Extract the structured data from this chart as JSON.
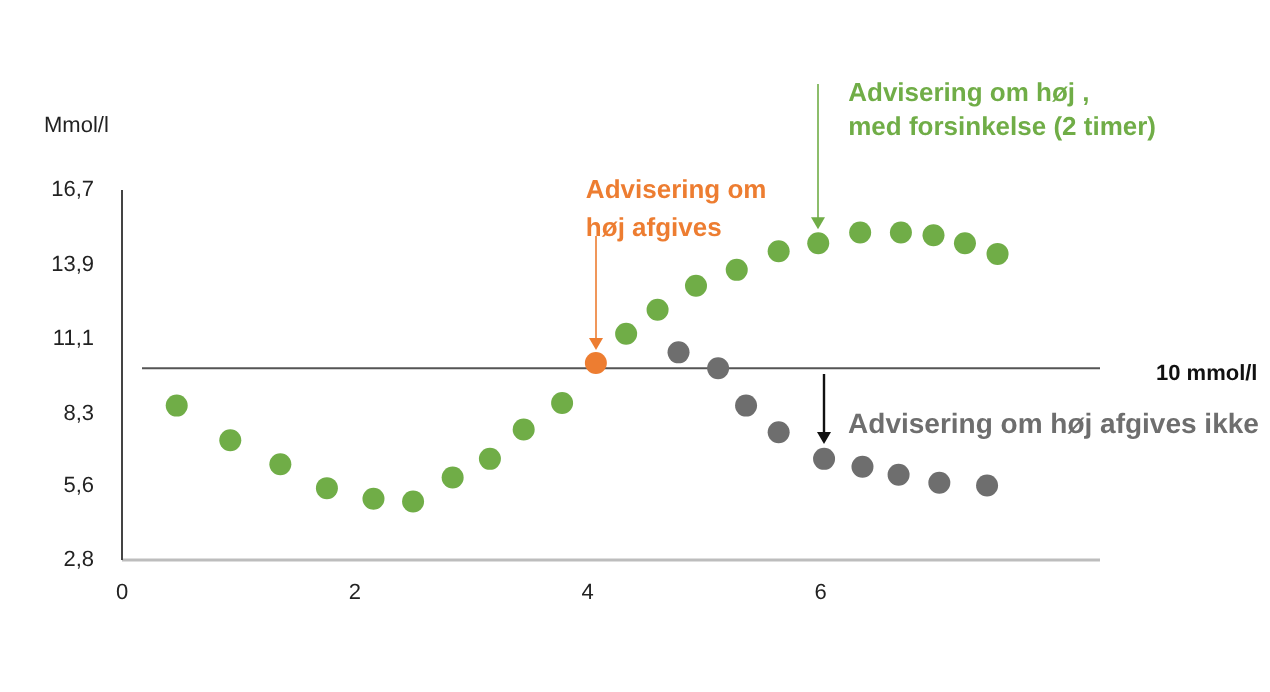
{
  "chart_data": {
    "type": "scatter",
    "ylabel": "Mmol/l",
    "xlim": [
      0,
      8.4
    ],
    "xticks": [
      0,
      2,
      4,
      6
    ],
    "ylim": [
      2.8,
      16.7
    ],
    "yticks": [
      {
        "value": 2.8,
        "label": "2,8"
      },
      {
        "value": 5.6,
        "label": "5,6"
      },
      {
        "value": 8.3,
        "label": "8,3"
      },
      {
        "value": 11.1,
        "label": "11,1"
      },
      {
        "value": 13.9,
        "label": "13,9"
      },
      {
        "value": 16.7,
        "label": "16,7"
      }
    ],
    "grid": false,
    "legend": false,
    "marker": "circle",
    "series": [
      {
        "color": "#70ad47",
        "x": [
          0.47,
          0.93,
          1.36,
          1.76,
          2.16,
          2.5,
          2.84,
          3.16,
          3.45,
          3.78,
          4.33,
          4.6,
          4.93,
          5.28,
          5.64,
          5.98,
          6.34,
          6.69,
          6.97,
          7.24,
          7.52
        ],
        "values": [
          8.6,
          7.3,
          6.4,
          5.5,
          5.1,
          5.0,
          5.9,
          6.6,
          7.7,
          8.7,
          11.3,
          12.2,
          13.1,
          13.7,
          14.4,
          14.7,
          15.1,
          15.1,
          15.0,
          14.7,
          14.3
        ]
      },
      {
        "color": "#ed7d31",
        "x": [
          4.07
        ],
        "values": [
          10.2
        ]
      },
      {
        "color": "#6e6e6e",
        "x": [
          4.78,
          5.12,
          5.36,
          5.64,
          6.03,
          6.36,
          6.67,
          7.02,
          7.43
        ],
        "values": [
          10.6,
          10.0,
          8.6,
          7.6,
          6.6,
          6.3,
          6.0,
          5.7,
          5.6
        ]
      }
    ],
    "ref_lines": [
      {
        "axis": "y",
        "value": 10,
        "label": "10 mmol/l",
        "color": "#555555"
      }
    ],
    "annotations": [
      "Advisering om\nhøj afgives",
      "Advisering om høj ,\nmed forsinkelse (2 timer)",
      {
        "text": "Advisering om høj afgives ikke",
        "x": 6.03,
        "y": 6.6
      }
    ]
  }
}
